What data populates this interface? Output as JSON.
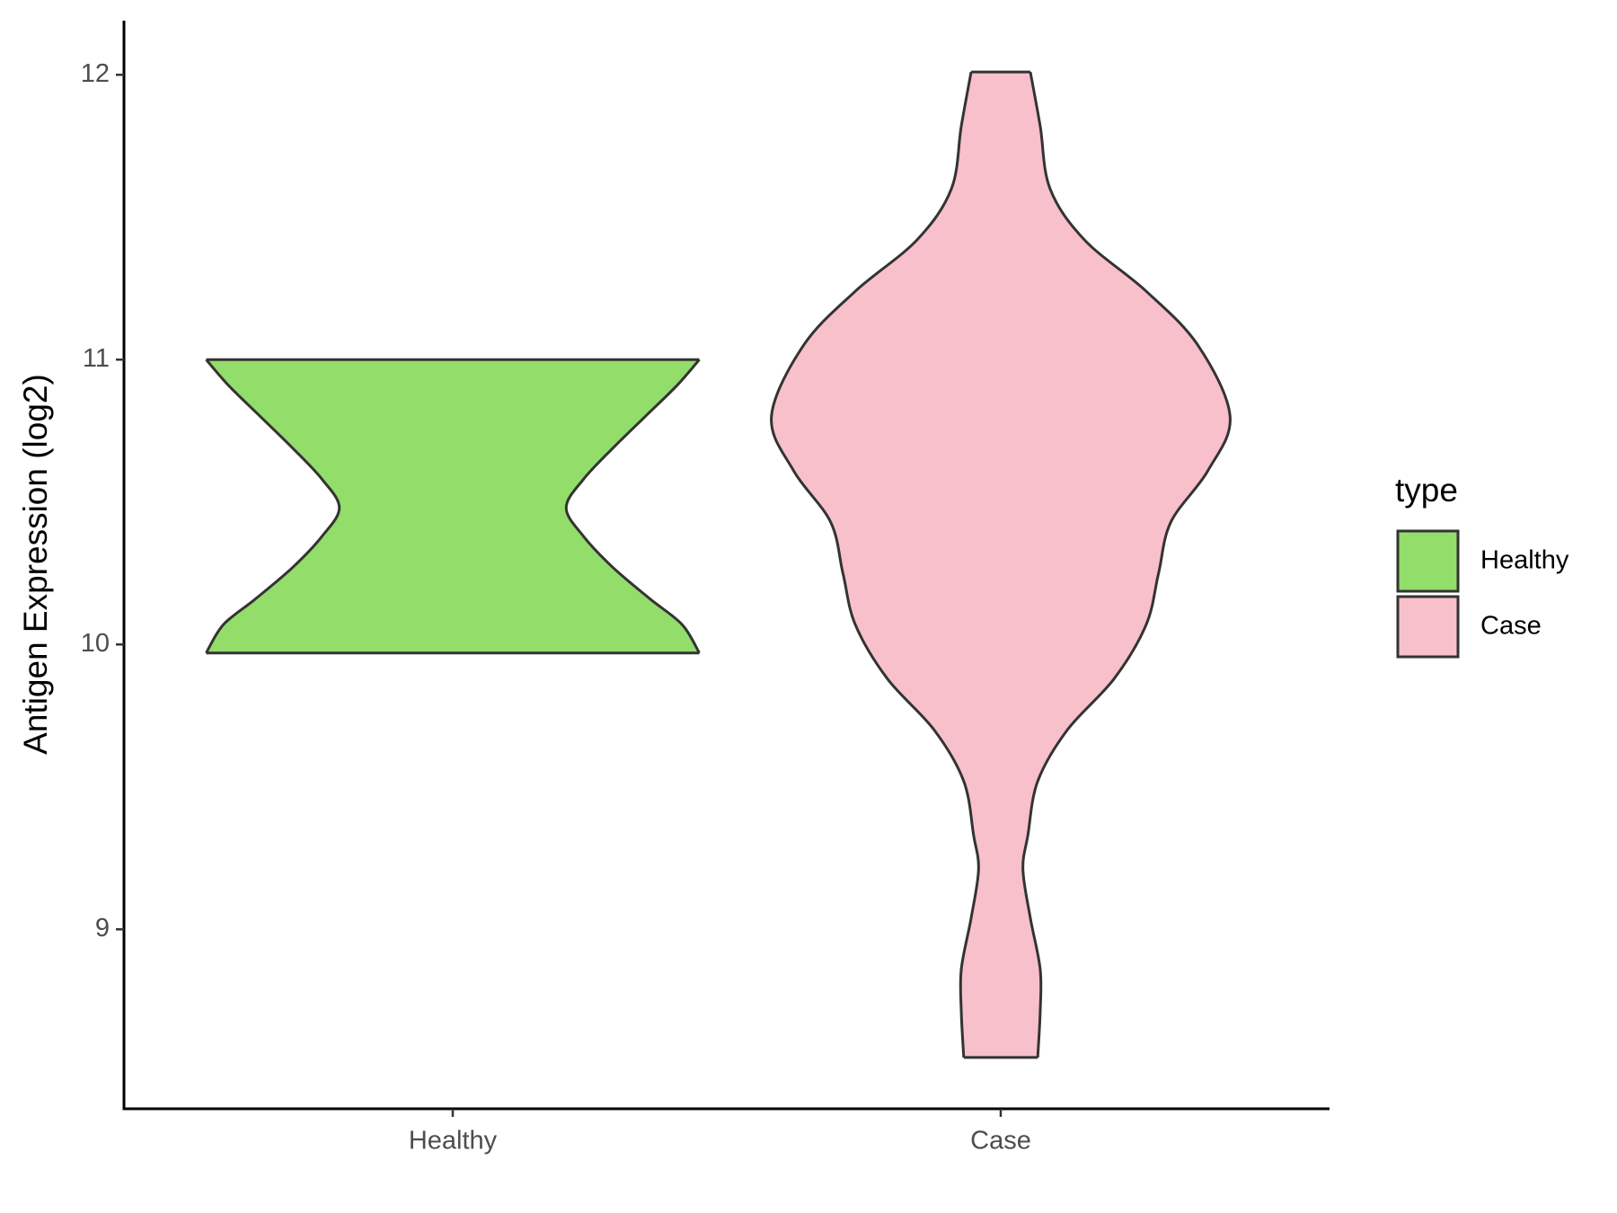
{
  "chart_data": {
    "type": "violin",
    "y_label": "Antigen Expression (log2)",
    "legend_title": "type",
    "categories": [
      "Healthy",
      "Case"
    ],
    "ylim": [
      8.37,
      12.19
    ],
    "yticks": [
      9,
      10,
      11,
      12
    ],
    "series": [
      {
        "name": "Healthy",
        "color": "#93dd6a",
        "y": [
          11.0,
          10.91,
          10.8,
          10.69,
          10.58,
          10.48,
          10.38,
          10.27,
          10.16,
          10.07,
          9.97
        ],
        "density": [
          1,
          0.91,
          0.78,
          0.65,
          0.53,
          0.46,
          0.53,
          0.65,
          0.8,
          0.93,
          1
        ]
      },
      {
        "name": "Case",
        "color": "#f7c0cb",
        "y": [
          12.01,
          11.82,
          11.6,
          11.42,
          11.24,
          11.05,
          10.8,
          10.61,
          10.43,
          10.25,
          10.07,
          9.88,
          9.7,
          9.52,
          9.33,
          9.21,
          9.04,
          8.86,
          8.71,
          8.55
        ],
        "density": [
          0.12,
          0.16,
          0.2,
          0.34,
          0.59,
          0.8,
          0.93,
          0.84,
          0.69,
          0.64,
          0.59,
          0.46,
          0.27,
          0.15,
          0.11,
          0.09,
          0.12,
          0.16,
          0.16,
          0.15
        ]
      }
    ]
  }
}
